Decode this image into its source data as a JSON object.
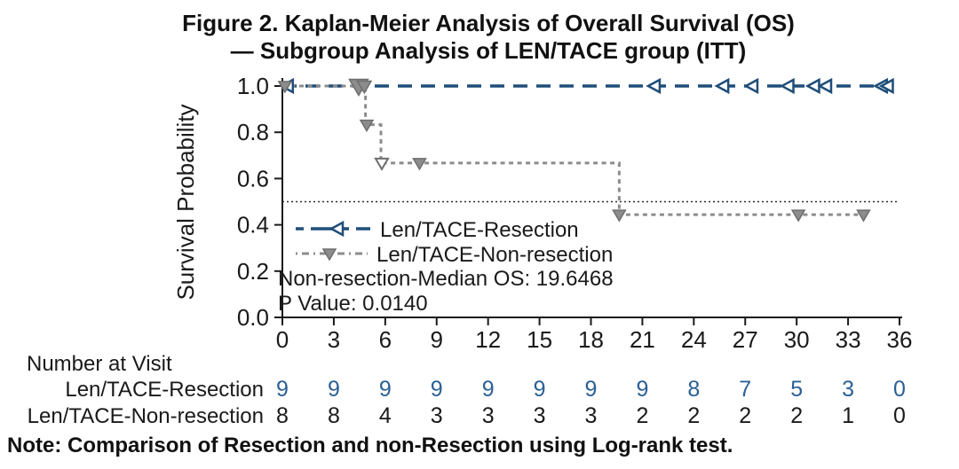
{
  "title": {
    "line1": "Figure 2. Kaplan-Meier Analysis of Overall Survival (OS)",
    "line2": "— Subgroup Analysis of LEN/TACE group (ITT)"
  },
  "colors": {
    "resection": "#1f4e79",
    "non_resection": "#8c8c8c",
    "marker_outline": "#6e6e6e",
    "axis": "#1a1a1a",
    "reference_line": "#2b2b2b",
    "at_risk_resection_numbers": "#2b6095",
    "at_risk_non_resection_numbers": "#1a1a1a"
  },
  "chart_data": {
    "type": "line",
    "subtype": "kaplan-meier-step",
    "title": "Figure 2. Kaplan-Meier Analysis of Overall Survival (OS) — Subgroup Analysis of LEN/TACE group (ITT)",
    "xlabel": "",
    "ylabel": "Survival Probability",
    "xlim": [
      0,
      36
    ],
    "ylim": [
      0,
      1
    ],
    "x_ticks": [
      0,
      3,
      6,
      9,
      12,
      15,
      18,
      21,
      24,
      27,
      30,
      33,
      36
    ],
    "y_ticks": [
      0.0,
      0.2,
      0.4,
      0.6,
      0.8,
      1.0
    ],
    "grid": false,
    "reference_line_y": 0.5,
    "legend_position": "inside-lower-left",
    "series": [
      {
        "name": "Len/TACE-Resection",
        "color": "#1f4e79",
        "line_style": "long-dash",
        "marker": "open-left-triangle",
        "step_points": [
          [
            0,
            1.0
          ],
          [
            35.3,
            1.0
          ]
        ],
        "markers": [
          [
            0.3,
            1.0
          ],
          [
            21.7,
            1.0
          ],
          [
            25.7,
            1.0
          ],
          [
            27.4,
            1.0
          ],
          [
            29.5,
            1.0
          ],
          [
            31.0,
            1.0
          ],
          [
            31.7,
            1.0
          ],
          [
            34.95,
            1.0
          ],
          [
            35.3,
            1.0
          ]
        ]
      },
      {
        "name": "Len/TACE-Non-resection",
        "color": "#8c8c8c",
        "line_style": "short-dash",
        "marker": "filled-down-triangle",
        "step_points": [
          [
            0,
            1.0
          ],
          [
            4.85,
            1.0
          ],
          [
            4.85,
            0.833
          ],
          [
            5.75,
            0.833
          ],
          [
            5.75,
            0.667
          ],
          [
            19.65,
            0.667
          ],
          [
            19.65,
            0.444
          ],
          [
            34.2,
            0.444
          ]
        ],
        "markers": [
          [
            0.15,
            1.0
          ],
          [
            4.45,
            1.0,
            1.5
          ],
          [
            4.78,
            1.0,
            1.1
          ],
          [
            4.92,
            0.833
          ],
          [
            8.0,
            0.667
          ],
          [
            19.65,
            0.444
          ],
          [
            30.1,
            0.444
          ],
          [
            33.9,
            0.444
          ]
        ],
        "markers_open": [
          [
            5.8,
            0.667
          ]
        ]
      }
    ],
    "annotations": [
      "Non-resection-Median OS: 19.6468",
      "P Value: 0.0140"
    ],
    "median_os_non_resection": "19.6468",
    "p_value": "0.0140"
  },
  "at_risk": {
    "header": "Number at Visit",
    "rows": [
      {
        "label": "Len/TACE-Resection",
        "color": "#2b6095",
        "counts": [
          9,
          9,
          9,
          9,
          9,
          9,
          9,
          9,
          8,
          7,
          5,
          3,
          0
        ]
      },
      {
        "label": "Len/TACE-Non-resection",
        "color": "#1a1a1a",
        "counts": [
          8,
          8,
          4,
          3,
          3,
          3,
          3,
          2,
          2,
          2,
          2,
          1,
          0
        ]
      }
    ]
  },
  "note": "Note: Comparison of Resection and non-Resection using Log-rank test."
}
